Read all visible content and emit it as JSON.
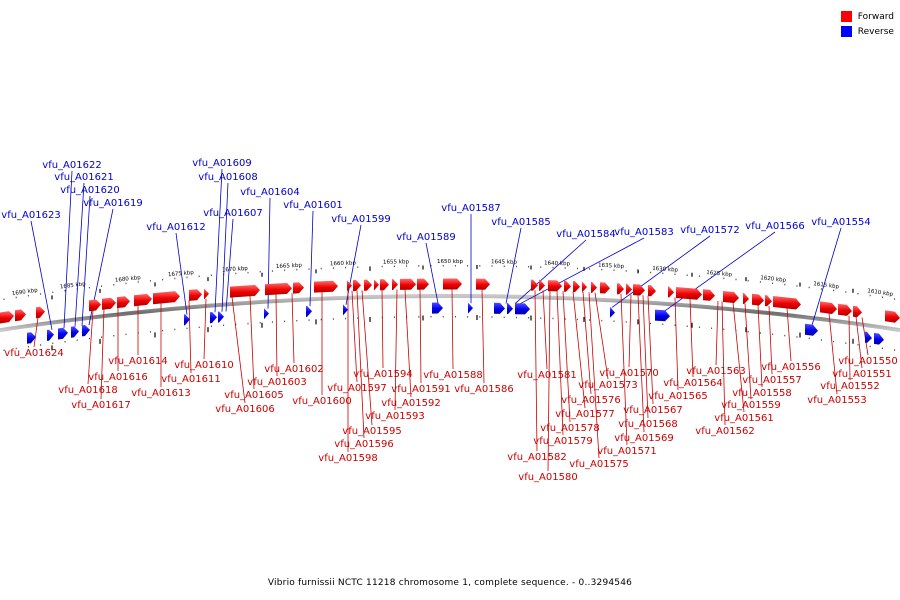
{
  "legend": {
    "forward": {
      "label": "Forward",
      "color": "#ff0000"
    },
    "reverse": {
      "label": "Reverse",
      "color": "#0000ff"
    }
  },
  "caption": "Vibrio furnissii NCTC 11218 chromosome 1, complete sequence. - 0..3294546",
  "ruler": {
    "labels": [
      "1690 kbp",
      "1685 kbp",
      "1680 kbp",
      "1675 kbp",
      "1670 kbp",
      "1665 kbp",
      "1660 kbp",
      "1655 kbp",
      "1650 kbp",
      "1645 kbp",
      "1640 kbp",
      "1635 kbp",
      "1630 kbp",
      "1625 kbp",
      "1620 kbp",
      "1615 kbp",
      "1610 kbp"
    ]
  },
  "reverse_genes": [
    "vfu_A01623",
    "vfu_A01622",
    "vfu_A01621",
    "vfu_A01620",
    "vfu_A01619",
    "vfu_A01612",
    "vfu_A01609",
    "vfu_A01608",
    "vfu_A01607",
    "vfu_A01604",
    "vfu_A01601",
    "vfu_A01599",
    "vfu_A01589",
    "vfu_A01587",
    "vfu_A01585",
    "vfu_A01584",
    "vfu_A01583",
    "vfu_A01572",
    "vfu_A01566",
    "vfu_A01554"
  ],
  "forward_genes": [
    "vfu_A01624",
    "vfu_A01618",
    "vfu_A01617",
    "vfu_A01616",
    "vfu_A01614",
    "vfu_A01613",
    "vfu_A01611",
    "vfu_A01610",
    "vfu_A01606",
    "vfu_A01605",
    "vfu_A01603",
    "vfu_A01602",
    "vfu_A01600",
    "vfu_A01598",
    "vfu_A01597",
    "vfu_A01596",
    "vfu_A01595",
    "vfu_A01594",
    "vfu_A01593",
    "vfu_A01592",
    "vfu_A01591",
    "vfu_A01588",
    "vfu_A01586",
    "vfu_A01582",
    "vfu_A01581",
    "vfu_A01580",
    "vfu_A01579",
    "vfu_A01578",
    "vfu_A01577",
    "vfu_A01576",
    "vfu_A01575",
    "vfu_A01573",
    "vfu_A01571",
    "vfu_A01570",
    "vfu_A01569",
    "vfu_A01568",
    "vfu_A01567",
    "vfu_A01565",
    "vfu_A01564",
    "vfu_A01563",
    "vfu_A01562",
    "vfu_A01561",
    "vfu_A01559",
    "vfu_A01558",
    "vfu_A01557",
    "vfu_A01556",
    "vfu_A01553",
    "vfu_A01552",
    "vfu_A01551",
    "vfu_A01550"
  ]
}
